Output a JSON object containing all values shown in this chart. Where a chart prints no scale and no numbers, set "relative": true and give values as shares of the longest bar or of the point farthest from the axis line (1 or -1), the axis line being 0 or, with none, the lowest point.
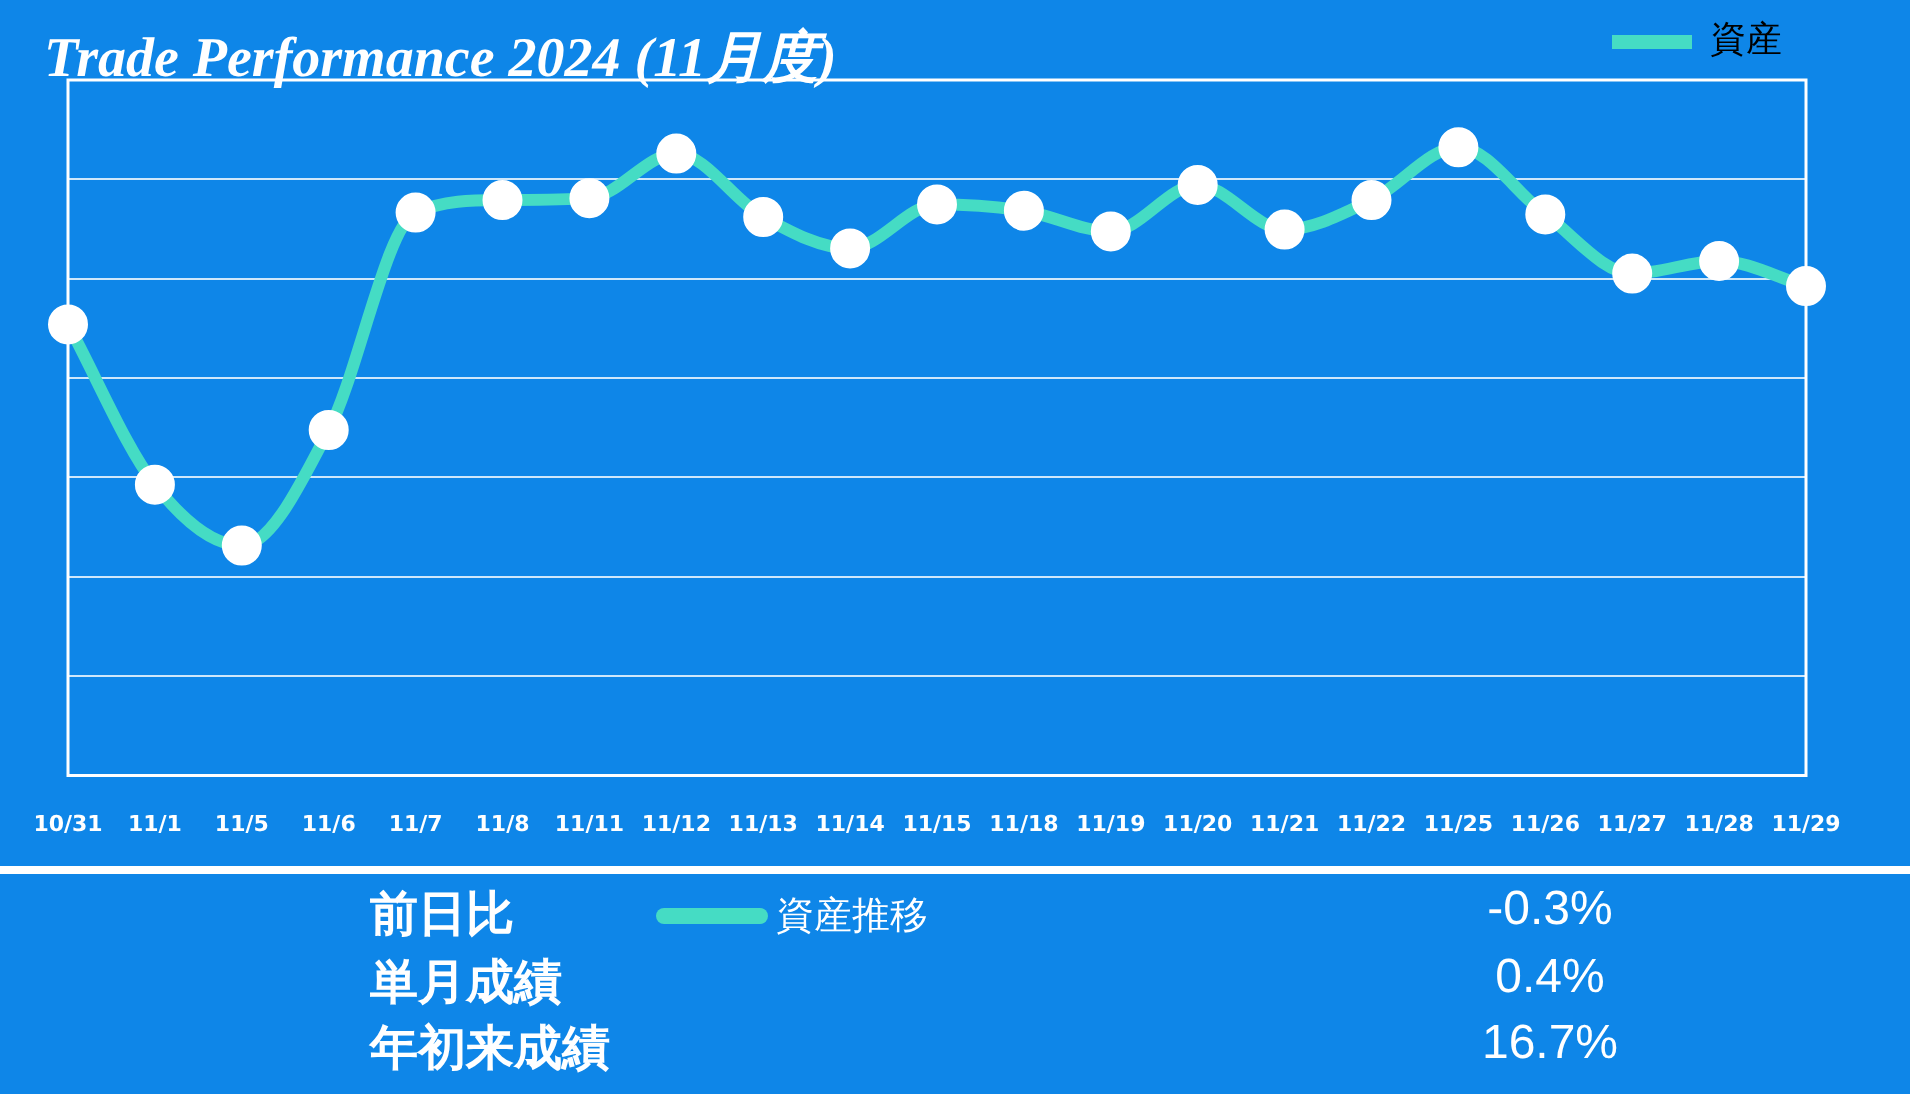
{
  "chart_data": {
    "type": "line",
    "title": "Trade Performance 2024 (11月度)",
    "categories": [
      "10/31",
      "11/1",
      "11/5",
      "11/6",
      "11/7",
      "11/8",
      "11/11",
      "11/12",
      "11/13",
      "11/14",
      "11/15",
      "11/18",
      "11/19",
      "11/20",
      "11/21",
      "11/22",
      "11/25",
      "11/26",
      "11/27",
      "11/28",
      "11/29"
    ],
    "relative": true,
    "series": [
      {
        "name": "資産",
        "color": "#45dcc4",
        "values": [
          0.718,
          0.463,
          0.366,
          0.55,
          0.896,
          0.916,
          0.919,
          0.99,
          0.889,
          0.839,
          0.909,
          0.899,
          0.866,
          0.94,
          0.869,
          0.916,
          1,
          0.893,
          0.799,
          0.819,
          0.779
        ]
      }
    ],
    "grid": "y",
    "legend": "top right",
    "marker": "circle",
    "annotations": [
      "前日比",
      "-0.3%",
      "単月成績",
      "0.4%",
      "年初来成績",
      "16.7%",
      "資産推移"
    ]
  }
}
